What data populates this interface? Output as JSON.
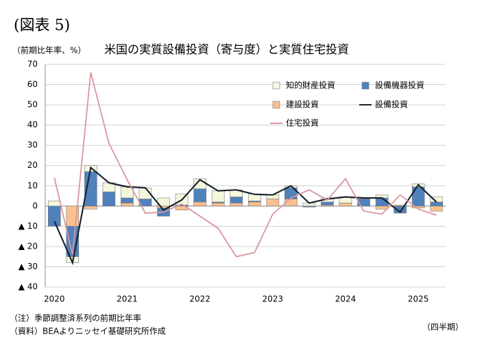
{
  "chart_data": {
    "type": "bar",
    "figure_label": "(図表 5)",
    "title": "米国の実質設備投資（寄与度）と実質住宅投資",
    "y_label": "（前期比年率、%）",
    "x_label": "（四半期）",
    "notes": [
      "（注）季節調整済系列の前期比年率",
      "（資料）BEAよりニッセイ基礎研究所作成"
    ],
    "categories": [
      "2020",
      null,
      null,
      null,
      "2021",
      null,
      null,
      null,
      "2022",
      null,
      null,
      null,
      "2023",
      null,
      null,
      null,
      "2024",
      null,
      null,
      null,
      "2025",
      null
    ],
    "series": [
      {
        "name": "建設投資",
        "type": "bar",
        "color": "#fac090",
        "values": [
          0,
          -10,
          -1.5,
          0,
          1.5,
          0,
          -1,
          -2,
          2,
          1.5,
          1.5,
          2,
          3.5,
          3.5,
          0,
          0.5,
          1.5,
          0,
          -1.5,
          0.5,
          -1,
          -2.5
        ]
      },
      {
        "name": "設備機器投資",
        "type": "bar",
        "color": "#4f81bd",
        "values": [
          -10,
          -15,
          17,
          7,
          2.5,
          3.5,
          -4,
          0.5,
          6.5,
          0.5,
          3,
          0.5,
          0,
          5.5,
          -0.5,
          1.5,
          0,
          3.5,
          4,
          -3.5,
          9.5,
          2
        ]
      },
      {
        "name": "知的財産投資",
        "type": "bar",
        "color": "#f4f7dc",
        "values": [
          2.5,
          -3,
          3,
          4.5,
          5.5,
          5.5,
          4,
          5.5,
          5,
          5.5,
          3.5,
          3.5,
          2,
          1,
          1.5,
          2,
          3,
          0.5,
          1.5,
          0,
          1.5,
          2.5
        ]
      },
      {
        "name": "設備投資",
        "type": "line",
        "color": "#1a2433",
        "values": [
          -7.5,
          -28,
          19,
          11.5,
          9.5,
          9,
          -2,
          3,
          13,
          7.5,
          8,
          5.8,
          5.5,
          10,
          1.5,
          3.5,
          4.5,
          4,
          4,
          -3,
          10.5,
          2
        ]
      },
      {
        "name": "住宅投資",
        "type": "line",
        "color": "#d9959c",
        "values": [
          14,
          -24,
          66,
          31,
          13,
          -3.5,
          -3,
          1,
          -5,
          -11,
          -25,
          -23,
          -4,
          4,
          8,
          3,
          13.5,
          -2.5,
          -4,
          5.5,
          -1.5,
          -4.5
        ]
      }
    ],
    "ylim": [
      -40,
      70
    ],
    "yticks": [
      {
        "value": -40,
        "label": "▲ 40"
      },
      {
        "value": -30,
        "label": "▲ 30"
      },
      {
        "value": -20,
        "label": "▲ 20"
      },
      {
        "value": -10,
        "label": "▲ 10"
      },
      0,
      10,
      20,
      30,
      40,
      50,
      60,
      70
    ],
    "grid": true,
    "legend": "upper right"
  }
}
